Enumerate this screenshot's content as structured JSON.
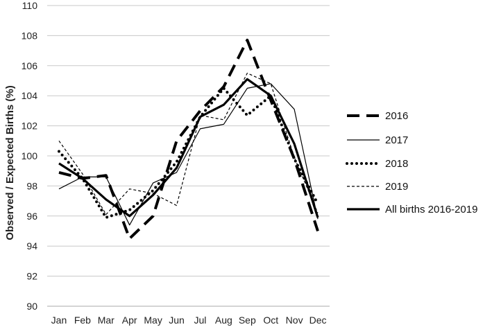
{
  "chart_data": {
    "type": "line",
    "title": "",
    "xlabel": "",
    "ylabel": "Observed / Expected Births (%)",
    "ylim": [
      90,
      110
    ],
    "yticks": [
      90,
      92,
      94,
      96,
      98,
      100,
      102,
      104,
      106,
      108,
      110
    ],
    "grid": "horizontal",
    "legend": "right",
    "categories": [
      "Jan",
      "Feb",
      "Mar",
      "Apr",
      "May",
      "Jun",
      "Jul",
      "Aug",
      "Sep",
      "Oct",
      "Nov",
      "Dec"
    ],
    "series": [
      {
        "name": "2016",
        "style": "long-dash",
        "values": [
          98.9,
          98.5,
          98.7,
          94.5,
          96.0,
          101.0,
          103.0,
          104.6,
          107.7,
          103.7,
          99.8,
          95.0
        ]
      },
      {
        "name": "2017",
        "style": "thin-solid",
        "values": [
          97.8,
          98.6,
          98.6,
          95.4,
          98.2,
          98.9,
          101.8,
          102.1,
          104.5,
          104.8,
          103.1,
          95.8
        ]
      },
      {
        "name": "2018",
        "style": "dotted",
        "values": [
          100.3,
          98.5,
          95.9,
          96.4,
          97.7,
          99.6,
          102.6,
          104.5,
          102.7,
          104.0,
          99.8,
          96.8
        ]
      },
      {
        "name": "2019",
        "style": "thin-dashed",
        "values": [
          101.0,
          98.8,
          96.1,
          97.8,
          97.5,
          96.7,
          102.7,
          102.4,
          105.5,
          104.8,
          99.9,
          96.2
        ]
      },
      {
        "name": "All births 2016-2019",
        "style": "thick-solid",
        "values": [
          99.5,
          98.5,
          97.1,
          96.0,
          97.4,
          99.2,
          102.6,
          103.4,
          105.1,
          104.0,
          100.8,
          95.9
        ]
      }
    ]
  }
}
